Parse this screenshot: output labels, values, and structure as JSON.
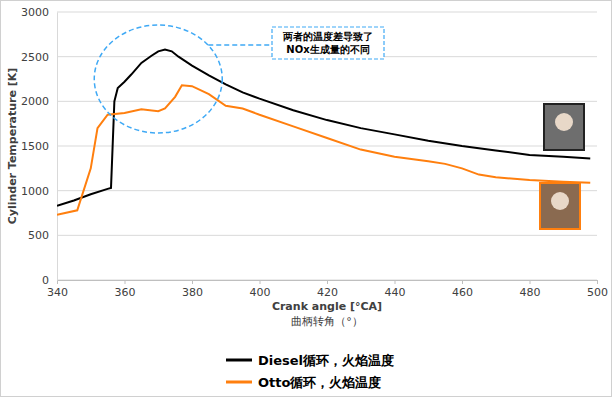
{
  "chart_data": {
    "type": "line",
    "y_label": "Cylinder Temperature  [K]",
    "x_label": [
      "Crank angle [°CA]",
      "曲柄转角（°）"
    ],
    "annotation": [
      "两者的温度差导致了",
      "NOx生成量的不同"
    ],
    "xlim": [
      340,
      500
    ],
    "xticks": [
      340,
      360,
      380,
      400,
      420,
      440,
      460,
      480,
      500
    ],
    "ylim": [
      0,
      3000
    ],
    "yticks": [
      0,
      500,
      1000,
      1500,
      2000,
      2500,
      3000
    ],
    "grid": true,
    "legend": "bottom",
    "series": [
      {
        "name": "Diesel循环，火焰温度",
        "color": "#000000",
        "x": [
          340,
          345,
          350,
          355,
          356,
          357,
          358,
          360,
          362,
          365,
          368,
          370,
          372,
          374,
          376,
          378,
          380,
          385,
          390,
          395,
          400,
          410,
          420,
          430,
          440,
          450,
          460,
          470,
          480,
          490,
          498
        ],
        "values": [
          830,
          890,
          960,
          1020,
          1030,
          2000,
          2150,
          2220,
          2300,
          2430,
          2510,
          2560,
          2580,
          2560,
          2500,
          2450,
          2400,
          2290,
          2190,
          2100,
          2030,
          1900,
          1790,
          1700,
          1630,
          1560,
          1500,
          1450,
          1400,
          1380,
          1360
        ]
      },
      {
        "name": "Otto循环，火焰温度",
        "color": "#ff7f0e",
        "x": [
          340,
          346,
          350,
          352,
          355,
          360,
          365,
          370,
          372,
          375,
          377,
          380,
          385,
          390,
          395,
          400,
          410,
          420,
          430,
          440,
          450,
          455,
          460,
          465,
          470,
          480,
          490,
          498
        ],
        "values": [
          730,
          780,
          1250,
          1700,
          1850,
          1870,
          1910,
          1890,
          1920,
          2050,
          2180,
          2170,
          2080,
          1950,
          1920,
          1850,
          1720,
          1590,
          1460,
          1380,
          1330,
          1300,
          1250,
          1180,
          1150,
          1120,
          1100,
          1090
        ]
      }
    ]
  }
}
